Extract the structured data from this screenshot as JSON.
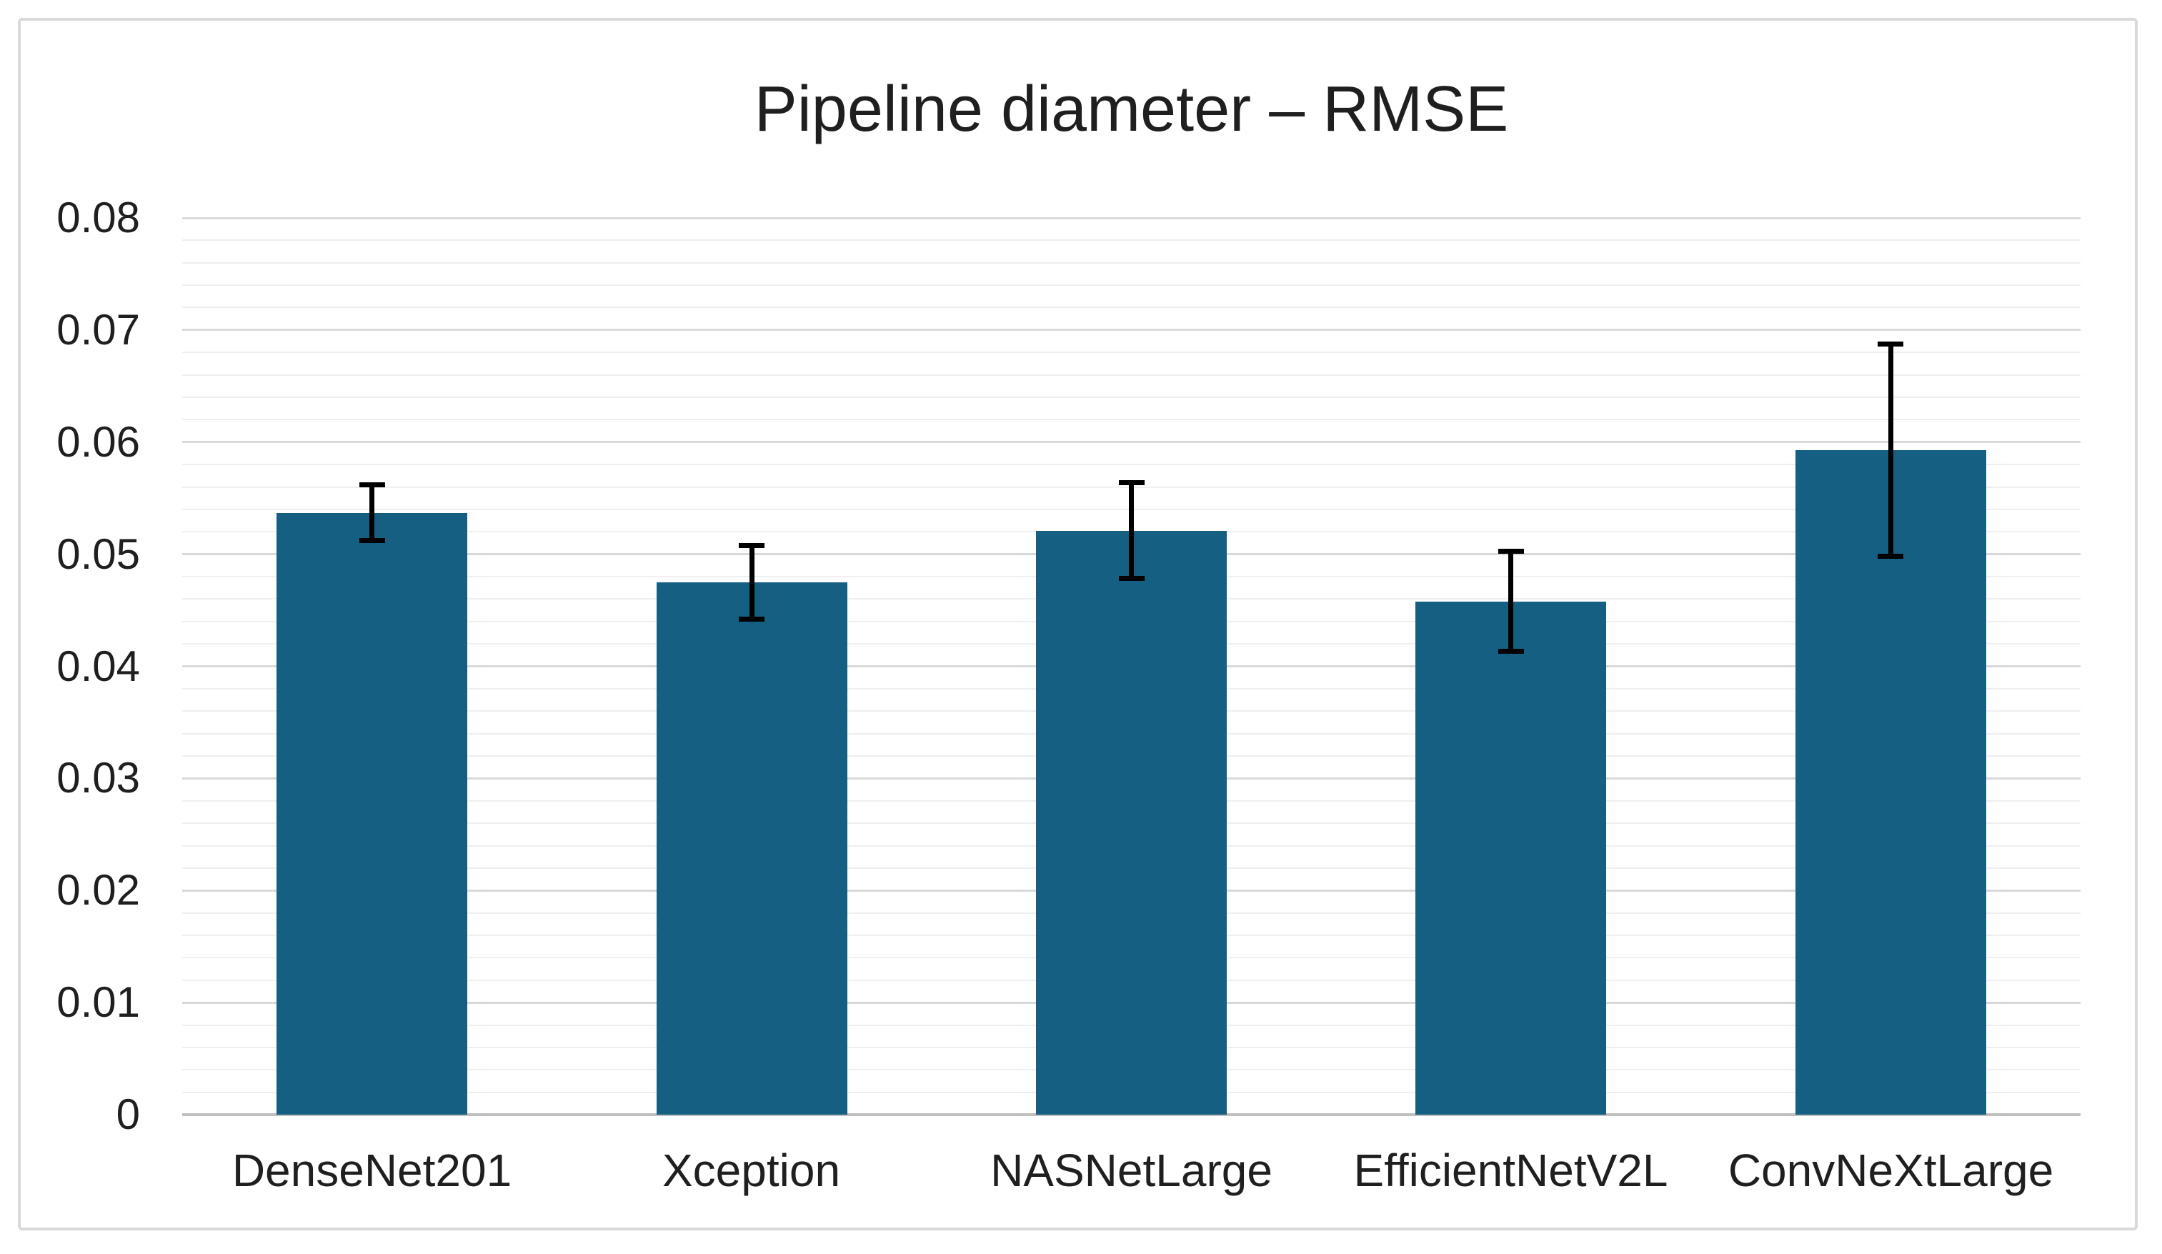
{
  "title": "Pipeline diameter – RMSE",
  "chart_data": {
    "type": "bar",
    "title": "Pipeline diameter – RMSE",
    "categories": [
      "DenseNet201",
      "Xception",
      "NASNetLarge",
      "EfficientNetV2L",
      "ConvNeXtLarge"
    ],
    "values": [
      0.0537,
      0.0475,
      0.0521,
      0.0458,
      0.0593
    ],
    "error_bars": [
      0.0025,
      0.0033,
      0.0043,
      0.0045,
      0.0095
    ],
    "error_ranges": [
      [
        0.0511,
        0.0562
      ],
      [
        0.0443,
        0.0508
      ],
      [
        0.0477,
        0.0563
      ],
      [
        0.0414,
        0.0504
      ],
      [
        0.0499,
        0.0689
      ]
    ],
    "xlabel": "",
    "ylabel": "",
    "ylim": [
      0,
      0.08
    ],
    "y_major_step": 0.01,
    "y_minor_step": 0.002,
    "y_tick_labels": [
      "0",
      "0.01",
      "0.02",
      "0.03",
      "0.04",
      "0.05",
      "0.06",
      "0.07",
      "0.08"
    ],
    "grid": "horizontal major+minor",
    "legend": "none",
    "colors": {
      "bar_fill": "#156082",
      "error_bar": "#000000",
      "gridline_major": "#D9D9D9",
      "gridline_minor": "#EFEFEF",
      "axis_baseline": "#BFBFBF",
      "text": "#1F1F1F",
      "frame_border": "#D9D9D9",
      "background": "#FFFFFF"
    }
  }
}
